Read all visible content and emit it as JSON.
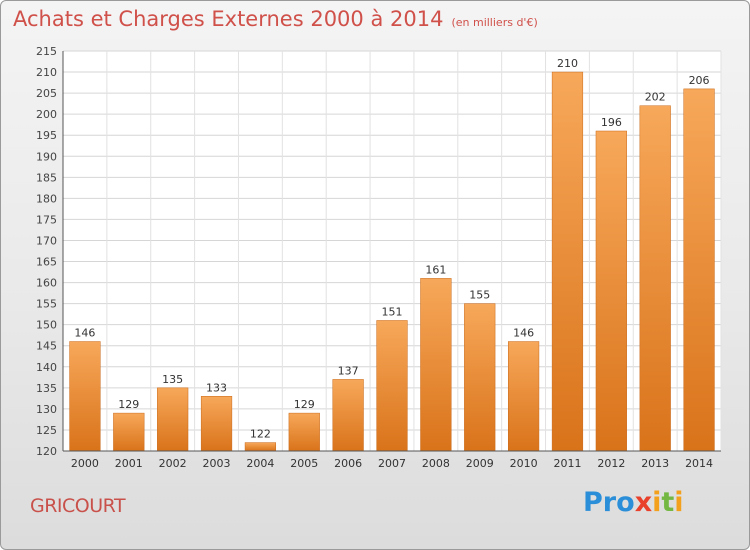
{
  "title": "Achats et Charges Externes 2000 à 2014",
  "subtitle": "(en milliers d'€)",
  "commune": "GRICOURT",
  "logo": {
    "text": "Proxiti",
    "letters": [
      {
        "char": "P",
        "color": "#2a8ed8"
      },
      {
        "char": "r",
        "color": "#2a8ed8"
      },
      {
        "char": "o",
        "color": "#2a8ed8"
      },
      {
        "char": "x",
        "color": "#e8402b"
      },
      {
        "char": "i",
        "color": "#f3a11c"
      },
      {
        "char": "t",
        "color": "#74b843"
      },
      {
        "char": "i",
        "color": "#f3a11c"
      }
    ]
  },
  "chart_data": {
    "type": "bar",
    "title": "Achats et Charges Externes 2000 à 2014",
    "subtitle": "(en milliers d'€)",
    "categories": [
      "2000",
      "2001",
      "2002",
      "2003",
      "2004",
      "2005",
      "2006",
      "2007",
      "2008",
      "2009",
      "2010",
      "2011",
      "2012",
      "2013",
      "2014"
    ],
    "values": [
      146,
      129,
      135,
      133,
      122,
      129,
      137,
      151,
      161,
      155,
      146,
      210,
      196,
      202,
      206
    ],
    "ylim": [
      120,
      215
    ],
    "yticks": [
      120,
      125,
      130,
      135,
      140,
      145,
      150,
      155,
      160,
      165,
      170,
      175,
      180,
      185,
      190,
      195,
      200,
      205,
      210,
      215
    ],
    "grid": true,
    "bar_color": "#f28e2c",
    "bar_color_light": "#f7a85a",
    "bar_color_dark": "#d9731a"
  }
}
